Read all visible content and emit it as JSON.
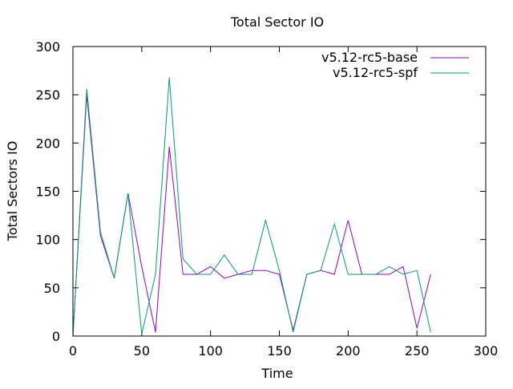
{
  "chart_data": {
    "type": "line",
    "title": "Total Sector IO",
    "xlabel": "Time",
    "ylabel": "Total Sectors IO",
    "xlim": [
      0,
      300
    ],
    "ylim": [
      0,
      300
    ],
    "x_ticks": [
      0,
      50,
      100,
      150,
      200,
      250,
      300
    ],
    "y_ticks": [
      0,
      50,
      100,
      150,
      200,
      250,
      300
    ],
    "grid": false,
    "legend_position": "top-right",
    "series": [
      {
        "name": "v5.12-rc5-base",
        "color": "#9400D3",
        "x": [
          0,
          10,
          20,
          30,
          40,
          50,
          60,
          70,
          80,
          90,
          100,
          110,
          120,
          130,
          140,
          150,
          160,
          170,
          180,
          190,
          200,
          210,
          220,
          230,
          240,
          250,
          260
        ],
        "y": [
          0,
          250,
          104,
          60,
          148,
          72,
          4,
          196,
          64,
          64,
          72,
          60,
          64,
          68,
          68,
          64,
          6,
          64,
          68,
          64,
          120,
          64,
          64,
          64,
          72,
          8,
          64
        ]
      },
      {
        "name": "v5.12-rc5-spf",
        "color": "#009E73",
        "x": [
          0,
          10,
          20,
          30,
          40,
          50,
          60,
          70,
          80,
          90,
          100,
          110,
          120,
          130,
          140,
          150,
          160,
          170,
          180,
          190,
          200,
          210,
          220,
          230,
          240,
          250,
          260
        ],
        "y": [
          0,
          256,
          108,
          60,
          148,
          2,
          64,
          268,
          80,
          64,
          64,
          84,
          64,
          64,
          120,
          68,
          4,
          64,
          68,
          116,
          64,
          64,
          64,
          72,
          64,
          68,
          4
        ]
      }
    ]
  }
}
